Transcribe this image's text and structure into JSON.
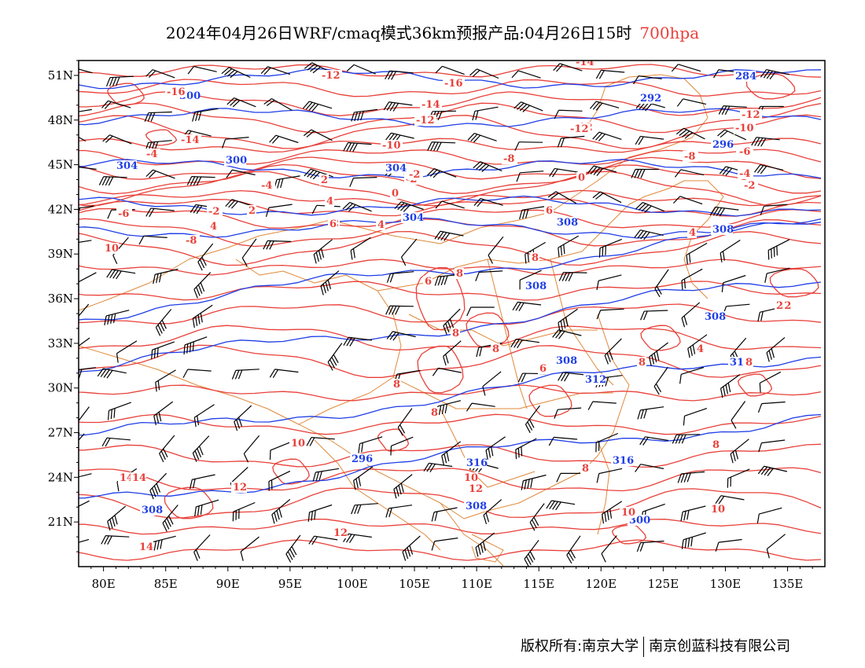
{
  "title": {
    "main": "2024年04月26日WRF/cmaq模式36km预报产品:04月26日15时",
    "level": "700hpa",
    "level_color": "#e8413a"
  },
  "map": {
    "lon_range": [
      78,
      138
    ],
    "lat_range": [
      18,
      52
    ],
    "lon_ticks": [
      "80E",
      "85E",
      "90E",
      "95E",
      "100E",
      "105E",
      "110E",
      "115E",
      "120E",
      "125E",
      "130E",
      "135E"
    ],
    "lat_ticks": [
      "51N",
      "48N",
      "45N",
      "42N",
      "39N",
      "36N",
      "33N",
      "30N",
      "27N",
      "24N",
      "21N"
    ],
    "colors": {
      "temperature": "#e8413a",
      "height": "#1f3ee6",
      "border": "#e0883a",
      "wind": "#000000"
    },
    "height_labels": [
      "284",
      "292",
      "300",
      "296",
      "304",
      "300",
      "304",
      "304",
      "308",
      "308",
      "308",
      "308",
      "308",
      "312",
      "312",
      "316",
      "316",
      "308",
      "308",
      "300",
      "296"
    ],
    "temp_labels": [
      "-14",
      "-12",
      "-16",
      "-16",
      "-14",
      "-12",
      "-12",
      "-10",
      "-8",
      "-12",
      "-14",
      "-10",
      "-8",
      "-6",
      "-4",
      "-2",
      "-4",
      "-2",
      "0",
      "2",
      "4",
      "-2",
      "0",
      "2",
      "4",
      "6",
      "8",
      "10",
      "-6",
      "-8",
      "-4",
      "-2",
      "2",
      "4",
      "6",
      "8",
      "8",
      "8",
      "8",
      "6",
      "8",
      "8",
      "8",
      "10",
      "12",
      "14",
      "14",
      "12",
      "10",
      "10",
      "12",
      "10",
      "8",
      "8",
      "-10",
      "-12",
      "-6",
      "-2",
      "4",
      "6",
      "8",
      "14",
      "2",
      "4"
    ]
  },
  "footer": {
    "left": "版权所有:南京大学",
    "right": "南京创蓝科技有限公司"
  }
}
